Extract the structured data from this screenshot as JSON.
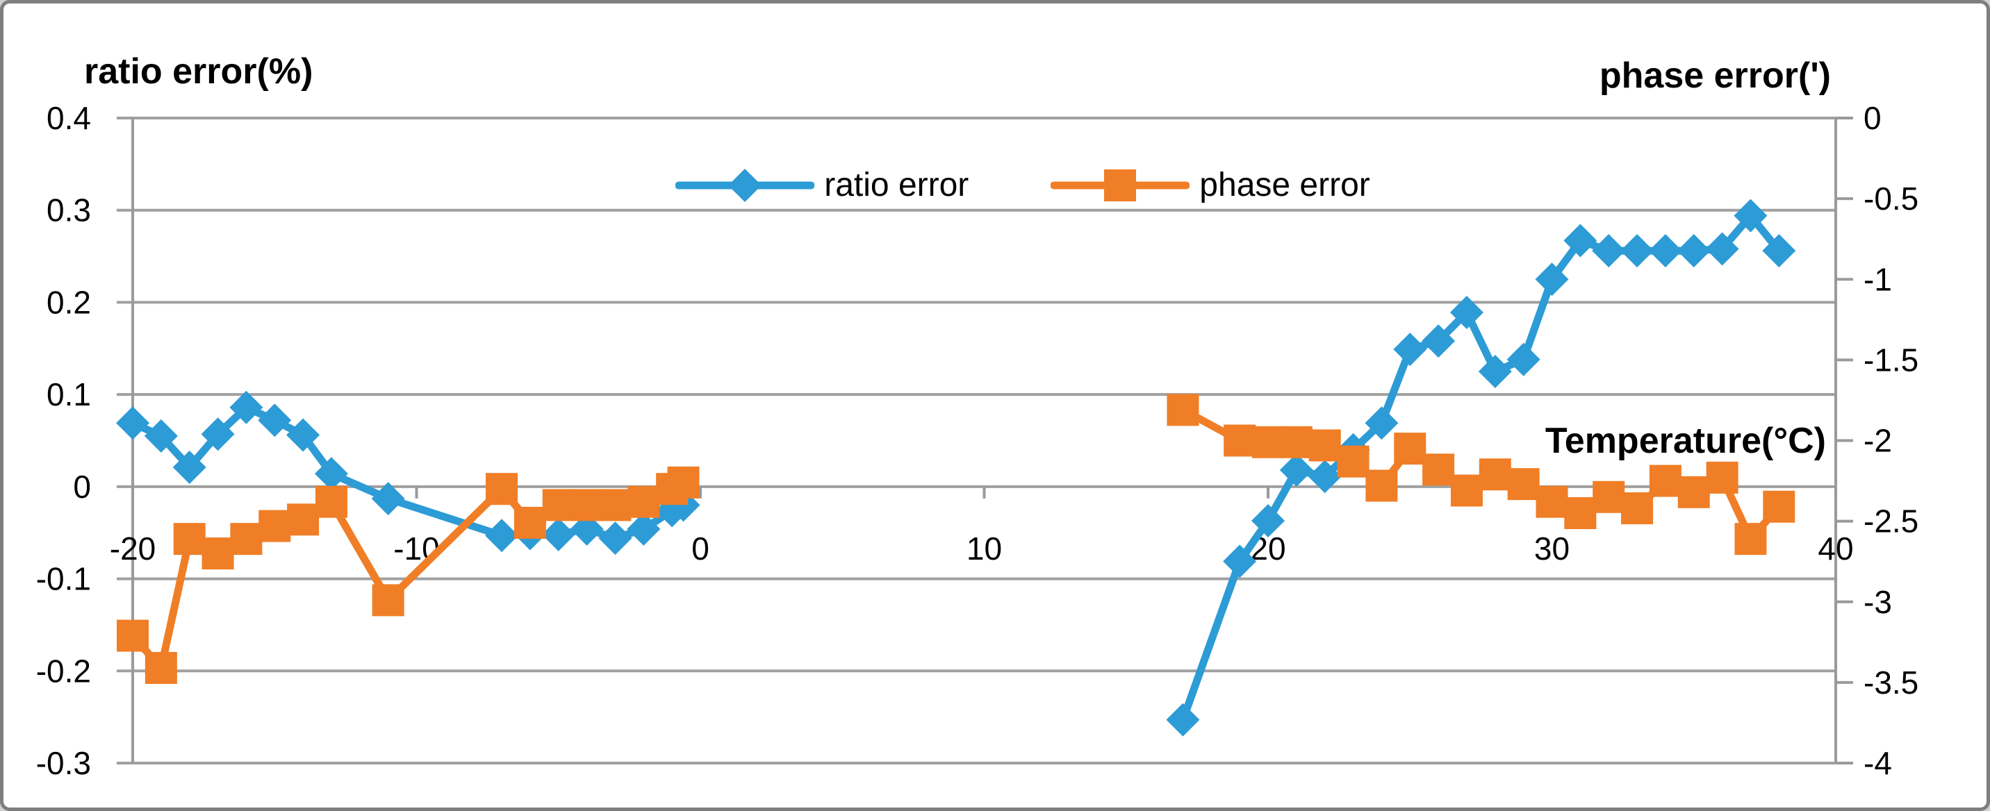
{
  "chart_data": {
    "type": "line",
    "title_left_axis": "ratio error(%)",
    "title_right_axis": "phase error(')",
    "x_axis_label": "Temperature(°C)",
    "x_tick_labels": [
      "-20",
      "-10",
      "0",
      "10",
      "20",
      "30",
      "40"
    ],
    "left_y_tick_labels": [
      "0.4",
      "0.3",
      "0.2",
      "0.1",
      "0",
      "-0.1",
      "-0.2",
      "-0.3"
    ],
    "right_y_tick_labels": [
      "0",
      "-0.5",
      "-1",
      "-1.5",
      "-2",
      "-2.5",
      "-3",
      "-3.5",
      "-4"
    ],
    "x_range": [
      -20,
      40
    ],
    "left_y_range": [
      0.4,
      -0.3
    ],
    "right_y_range": [
      0,
      -4
    ],
    "grid": "horizontal-only",
    "legend_position": "top-center",
    "colors": {
      "grid": "#a0a0a0",
      "axis": "#9a9a9a",
      "text": "#000000"
    },
    "series": [
      {
        "name": "ratio error",
        "axis": "left",
        "color": "#2d9bd5",
        "marker": "diamond",
        "segments": [
          [
            [
              -20,
              0.069
            ],
            [
              -19,
              0.055
            ],
            [
              -18,
              0.021
            ],
            [
              -17,
              0.057
            ],
            [
              -16,
              0.086
            ],
            [
              -15,
              0.072
            ],
            [
              -14,
              0.056
            ],
            [
              -13,
              0.014
            ],
            [
              -11,
              -0.013
            ],
            [
              -7,
              -0.053
            ],
            [
              -6,
              -0.051
            ],
            [
              -5,
              -0.052
            ],
            [
              -4,
              -0.046
            ],
            [
              -3,
              -0.056
            ],
            [
              -2,
              -0.046
            ],
            [
              -1,
              -0.026
            ],
            [
              -0.6,
              -0.02
            ]
          ],
          [
            [
              17,
              -0.253
            ],
            [
              19,
              -0.081
            ],
            [
              20,
              -0.037
            ],
            [
              21,
              0.018
            ],
            [
              22,
              0.011
            ],
            [
              23,
              0.04
            ],
            [
              24,
              0.069
            ],
            [
              25,
              0.149
            ],
            [
              26,
              0.158
            ],
            [
              27,
              0.189
            ],
            [
              28,
              0.125
            ],
            [
              29,
              0.138
            ],
            [
              30,
              0.225
            ],
            [
              31,
              0.267
            ],
            [
              32,
              0.256
            ],
            [
              33,
              0.256
            ],
            [
              34,
              0.256
            ],
            [
              35,
              0.256
            ],
            [
              36,
              0.258
            ],
            [
              37,
              0.294
            ],
            [
              38,
              0.256
            ]
          ]
        ]
      },
      {
        "name": "phase error",
        "axis": "right",
        "color": "#f07e26",
        "marker": "square",
        "segments": [
          [
            [
              -20,
              -3.21
            ],
            [
              -19,
              -3.41
            ],
            [
              -18,
              -2.61
            ],
            [
              -17,
              -2.7
            ],
            [
              -16,
              -2.61
            ],
            [
              -15,
              -2.53
            ],
            [
              -14,
              -2.49
            ],
            [
              -13,
              -2.38
            ],
            [
              -11,
              -2.99
            ],
            [
              -7,
              -2.3
            ],
            [
              -6,
              -2.51
            ],
            [
              -5,
              -2.4
            ],
            [
              -4,
              -2.4
            ],
            [
              -3,
              -2.4
            ],
            [
              -2,
              -2.38
            ],
            [
              -1,
              -2.3
            ],
            [
              -0.6,
              -2.26
            ]
          ],
          [
            [
              17,
              -1.81
            ],
            [
              19,
              -2.0
            ],
            [
              20,
              -2.01
            ],
            [
              21,
              -2.01
            ],
            [
              22,
              -2.03
            ],
            [
              23,
              -2.13
            ],
            [
              24,
              -2.28
            ],
            [
              25,
              -2.05
            ],
            [
              26,
              -2.18
            ],
            [
              27,
              -2.31
            ],
            [
              28,
              -2.21
            ],
            [
              29,
              -2.27
            ],
            [
              30,
              -2.38
            ],
            [
              31,
              -2.45
            ],
            [
              32,
              -2.35
            ],
            [
              33,
              -2.42
            ],
            [
              34,
              -2.25
            ],
            [
              35,
              -2.32
            ],
            [
              36,
              -2.23
            ],
            [
              37,
              -2.61
            ],
            [
              38,
              -2.41
            ]
          ]
        ]
      }
    ]
  }
}
